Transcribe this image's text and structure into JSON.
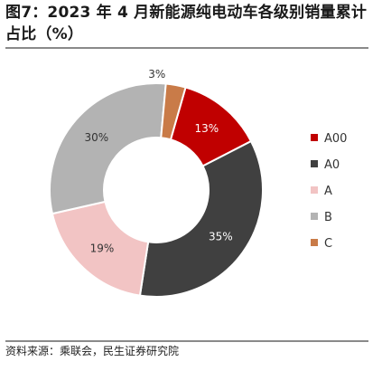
{
  "header": {
    "title": "图7：2023 年 4 月新能源纯电动车各级别销量累计占比（%）"
  },
  "footer": {
    "source": "资料来源：乘联会，民生证券研究院"
  },
  "chart_data": {
    "type": "pie",
    "donut": true,
    "title": "图7：2023 年 4 月新能源纯电动车各级别销量累计占比（%）",
    "categories": [
      "A00",
      "A0",
      "A",
      "B",
      "C"
    ],
    "values": [
      13,
      35,
      19,
      30,
      3
    ],
    "labels": [
      "13%",
      "35%",
      "19%",
      "30%",
      "3%"
    ],
    "colors": [
      "#c00000",
      "#404040",
      "#f2c4c4",
      "#b3b3b3",
      "#c97b48"
    ],
    "label_colors": [
      "#ffffff",
      "#ffffff",
      "#333333",
      "#333333",
      "#333333"
    ],
    "legend_position": "right"
  }
}
